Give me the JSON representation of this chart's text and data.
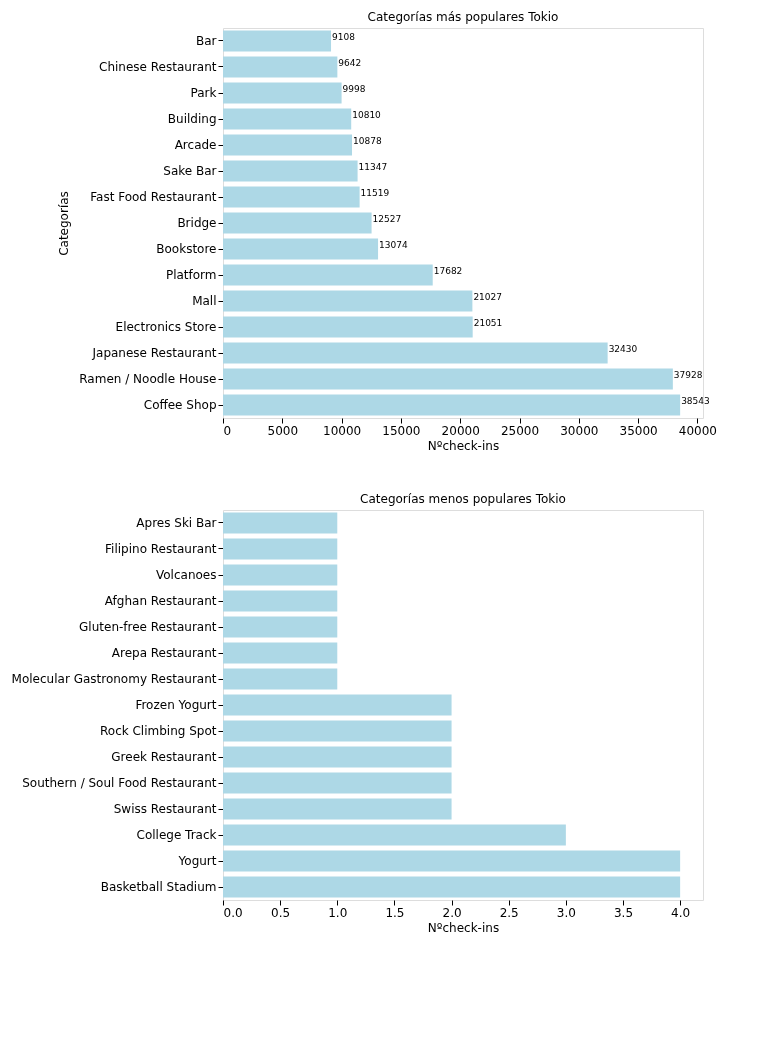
{
  "chart_data": [
    {
      "type": "bar",
      "orientation": "horizontal",
      "title": "Categorías más populares Tokio",
      "xlabel": "Nºcheck-ins",
      "ylabel": "Categorías",
      "categories": [
        "Bar",
        "Chinese Restaurant",
        "Park",
        "Building",
        "Arcade",
        "Sake Bar",
        "Fast Food Restaurant",
        "Bridge",
        "Bookstore",
        "Platform",
        "Mall",
        "Electronics Store",
        "Japanese Restaurant",
        "Ramen /  Noodle House",
        "Coffee Shop"
      ],
      "values": [
        9108,
        9642,
        9998,
        10810,
        10878,
        11347,
        11519,
        12527,
        13074,
        17682,
        21027,
        21051,
        32430,
        37928,
        38543
      ],
      "color": "#add8e6",
      "xlim": [
        0,
        40470
      ],
      "xticks": [
        0,
        5000,
        10000,
        15000,
        20000,
        25000,
        30000,
        35000,
        40000
      ],
      "data_labels": true,
      "grid": false
    },
    {
      "type": "bar",
      "orientation": "horizontal",
      "title": "Categorías menos populares Tokio",
      "xlabel": "Nºcheck-ins",
      "categories": [
        "Apres Ski Bar",
        "Filipino Restaurant",
        "Volcanoes",
        "Afghan Restaurant",
        "Gluten-free Restaurant",
        "Arepa Restaurant",
        "Molecular Gastronomy Restaurant",
        "Frozen Yogurt",
        "Rock Climbing Spot",
        "Greek Restaurant",
        "Southern / Soul Food Restaurant",
        "Swiss Restaurant",
        "College Track",
        "Yogurt",
        "Basketball Stadium"
      ],
      "values": [
        1,
        1,
        1,
        1,
        1,
        1,
        1,
        2,
        2,
        2,
        2,
        2,
        3,
        4,
        4
      ],
      "color": "#add8e6",
      "xlim": [
        0,
        4.2
      ],
      "xticks": [
        {
          "value": 0,
          "label": "0.0"
        },
        {
          "value": 0.5,
          "label": "0.5"
        },
        {
          "value": 1,
          "label": "1.0"
        },
        {
          "value": 1.5,
          "label": "1.5"
        },
        {
          "value": 2,
          "label": "2.0"
        },
        {
          "value": 2.5,
          "label": "2.5"
        },
        {
          "value": 3,
          "label": "3.0"
        },
        {
          "value": 3.5,
          "label": "3.5"
        },
        {
          "value": 4,
          "label": "4.0"
        }
      ],
      "grid": false
    }
  ]
}
